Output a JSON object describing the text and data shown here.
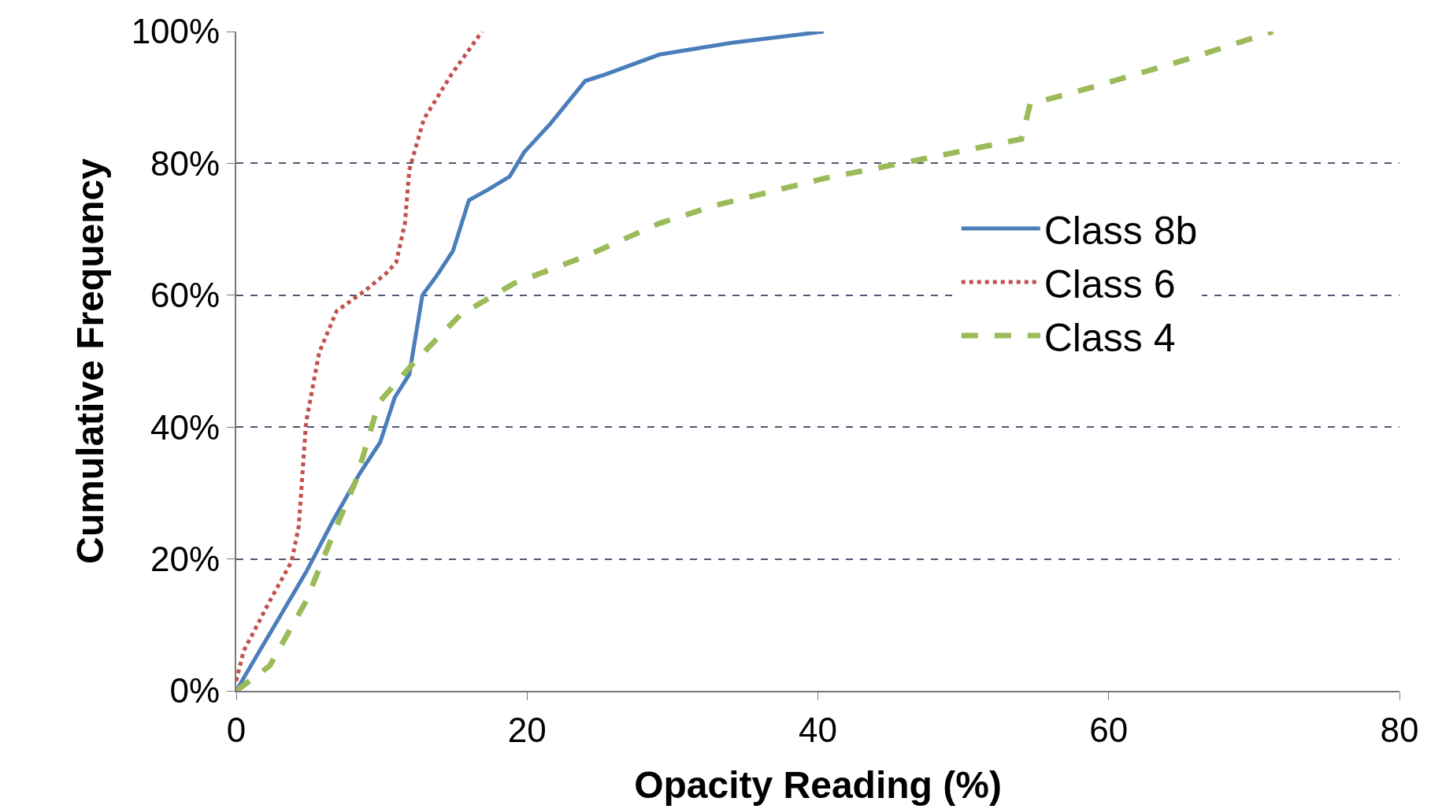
{
  "chart_data": {
    "type": "line",
    "xlabel": "Opacity Reading (%)",
    "ylabel": "Cumulative Frequency",
    "xlim": [
      0,
      80
    ],
    "xticks": [
      0,
      20,
      40,
      60,
      80
    ],
    "ylim": [
      0,
      100
    ],
    "yticks": [
      {
        "value": 0,
        "label": "0%"
      },
      {
        "value": 20,
        "label": "20%"
      },
      {
        "value": 40,
        "label": "40%"
      },
      {
        "value": 60,
        "label": "60%"
      },
      {
        "value": 80,
        "label": "80%"
      },
      {
        "value": 100,
        "label": "100%"
      }
    ],
    "grid": "y",
    "legend": "right",
    "series": [
      {
        "name": "Class 8b",
        "color": "#4a7ebb",
        "line_style": "solid",
        "x": [
          0,
          1,
          4.8,
          6.6,
          8.5,
          9.9,
          10.9,
          11.9,
          12.8,
          13.8,
          14.9,
          16,
          17.3,
          18.8,
          19.8,
          21.6,
          24,
          25.4,
          29.1,
          34.1,
          40.4
        ],
        "values": [
          0,
          3.8,
          18,
          25.6,
          33,
          37.7,
          44.5,
          48,
          60,
          63,
          66.7,
          74.4,
          76,
          78,
          81.7,
          86,
          92.5,
          93.5,
          96.5,
          98.3,
          100
        ]
      },
      {
        "name": "Class 6",
        "color": "#c0504d",
        "line_style": "dotted",
        "x": [
          0,
          0.5,
          2.3,
          3.8,
          4.3,
          4.8,
          5.7,
          6.9,
          8.8,
          10.3,
          11,
          11.6,
          11.9,
          12.9,
          14.8,
          16.9
        ],
        "values": [
          1.5,
          6,
          13.6,
          19.6,
          25,
          40.7,
          51.3,
          57.6,
          60.6,
          63.3,
          65,
          70.9,
          79,
          86.7,
          93.5,
          100
        ]
      },
      {
        "name": "Class 4",
        "color": "#9bbb59",
        "line_style": "dashed",
        "x": [
          0,
          2.3,
          4.8,
          6.6,
          8.2,
          9.8,
          12.3,
          15.4,
          19.1,
          24.1,
          29.1,
          32.9,
          40.4,
          47.3,
          54,
          54.6,
          59.1,
          65.4,
          71.3
        ],
        "values": [
          0,
          3.8,
          13.6,
          23.4,
          31.7,
          43.7,
          50,
          57,
          61.8,
          66,
          70.9,
          73.6,
          77.7,
          80.7,
          83.7,
          89,
          91.7,
          95.8,
          100
        ]
      }
    ]
  }
}
